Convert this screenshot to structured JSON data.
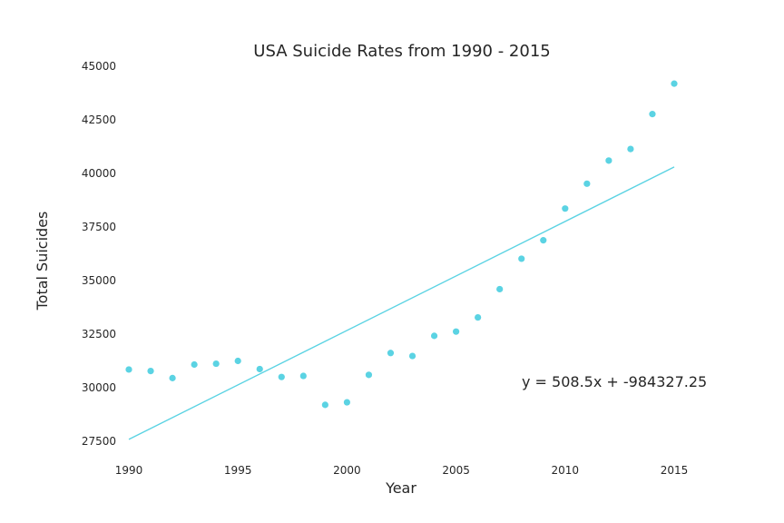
{
  "chart_data": {
    "type": "scatter",
    "title": "USA Suicide Rates from 1990 - 2015",
    "xlabel": "Year",
    "ylabel": "Total Suicides",
    "xlim": [
      1990,
      2015
    ],
    "ylim": [
      27500,
      45000
    ],
    "xticks": [
      1990,
      1995,
      2000,
      2005,
      2010,
      2015
    ],
    "xtick_labels": [
      "1990",
      "1995",
      "2000",
      "2005",
      "2010",
      "2015"
    ],
    "yticks": [
      27500,
      30000,
      32500,
      35000,
      37500,
      40000,
      42500,
      45000
    ],
    "ytick_labels": [
      "27500",
      "30000",
      "32500",
      "35000",
      "37500",
      "40000",
      "42500",
      "45000"
    ],
    "grid": false,
    "point_color": "#5bd3e3",
    "line_color": "#5bd3e3",
    "points": [
      {
        "x": 1990,
        "y": 30850
      },
      {
        "x": 1991,
        "y": 30780
      },
      {
        "x": 1992,
        "y": 30450
      },
      {
        "x": 1993,
        "y": 31080
      },
      {
        "x": 1994,
        "y": 31120
      },
      {
        "x": 1995,
        "y": 31250
      },
      {
        "x": 1996,
        "y": 30870
      },
      {
        "x": 1997,
        "y": 30500
      },
      {
        "x": 1998,
        "y": 30550
      },
      {
        "x": 1999,
        "y": 29200
      },
      {
        "x": 2000,
        "y": 29320
      },
      {
        "x": 2001,
        "y": 30600
      },
      {
        "x": 2002,
        "y": 31620
      },
      {
        "x": 2003,
        "y": 31480
      },
      {
        "x": 2004,
        "y": 32420
      },
      {
        "x": 2005,
        "y": 32620
      },
      {
        "x": 2006,
        "y": 33280
      },
      {
        "x": 2007,
        "y": 34600
      },
      {
        "x": 2008,
        "y": 36020
      },
      {
        "x": 2009,
        "y": 36880
      },
      {
        "x": 2010,
        "y": 38360
      },
      {
        "x": 2011,
        "y": 39520
      },
      {
        "x": 2012,
        "y": 40600
      },
      {
        "x": 2013,
        "y": 41140
      },
      {
        "x": 2014,
        "y": 42770
      },
      {
        "x": 2015,
        "y": 44190
      }
    ],
    "trendline": {
      "slope": 508.5,
      "intercept": -984327.25,
      "equation_label": "y = 508.5x + -984327.25"
    }
  }
}
